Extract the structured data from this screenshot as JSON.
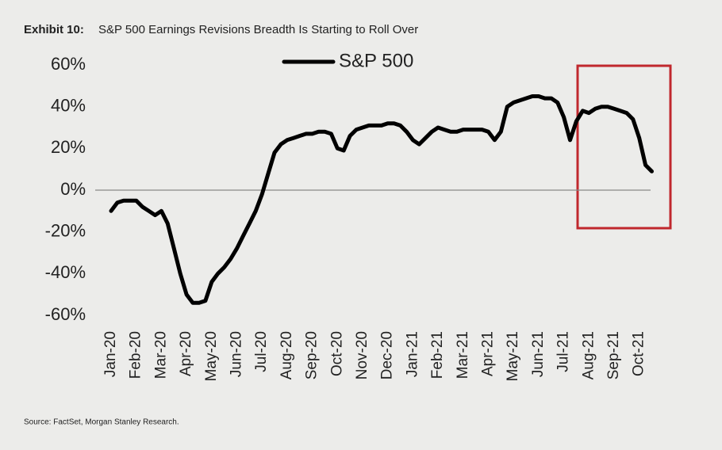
{
  "chart_data": {
    "type": "line",
    "title_label": "Exhibit 10:",
    "title": "S&P 500 Earnings Revisions Breadth Is Starting to Roll Over",
    "source": "Source: FactSet, Morgan Stanley Research.",
    "categories": [
      "Jan-20",
      null,
      null,
      null,
      "Feb-20",
      null,
      null,
      null,
      "Mar-20",
      null,
      null,
      null,
      "Apr-20",
      null,
      null,
      null,
      "May-20",
      null,
      null,
      null,
      "Jun-20",
      null,
      null,
      null,
      "Jul-20",
      null,
      null,
      null,
      "Aug-20",
      null,
      null,
      null,
      "Sep-20",
      null,
      null,
      null,
      "Oct-20",
      null,
      null,
      null,
      "Nov-20",
      null,
      null,
      null,
      "Dec-20",
      null,
      null,
      null,
      "Jan-21",
      null,
      null,
      null,
      "Feb-21",
      null,
      null,
      null,
      "Mar-21",
      null,
      null,
      null,
      "Apr-21",
      null,
      null,
      null,
      "May-21",
      null,
      null,
      null,
      "Jun-21",
      null,
      null,
      null,
      "Jul-21",
      null,
      null,
      null,
      "Aug-21",
      null,
      null,
      null,
      "Sep-21",
      null,
      null,
      null,
      "Oct-21",
      null,
      null
    ],
    "series": [
      {
        "name": "S&P 500",
        "color": "#000000",
        "values": [
          -10,
          -6,
          -5,
          -5,
          -5,
          -8,
          -10,
          -12,
          -10,
          -16,
          -28,
          -40,
          -50,
          -54,
          -54,
          -53,
          -44,
          -40,
          -37,
          -33,
          -28,
          -22,
          -16,
          -10,
          -2,
          8,
          18,
          22,
          24,
          25,
          26,
          27,
          27,
          28,
          28,
          27,
          20,
          19,
          26,
          29,
          30,
          31,
          31,
          31,
          32,
          32,
          31,
          28,
          24,
          22,
          25,
          28,
          30,
          29,
          28,
          28,
          29,
          29,
          29,
          29,
          28,
          24,
          28,
          40,
          42,
          43,
          44,
          45,
          45,
          44,
          44,
          42,
          35,
          24,
          33,
          38,
          37,
          39,
          40,
          40,
          39,
          38,
          37,
          34,
          25,
          12,
          9
        ]
      }
    ],
    "ylim": [
      -60,
      60
    ],
    "yticks": [
      {
        "value": 60,
        "label": "60%"
      },
      {
        "value": 40,
        "label": "40%"
      },
      {
        "value": 20,
        "label": "20%"
      },
      {
        "value": 0,
        "label": "0%"
      },
      {
        "value": -20,
        "label": "-20%"
      },
      {
        "value": -40,
        "label": "-40%"
      },
      {
        "value": -60,
        "label": "-60%"
      }
    ],
    "zero_line": true,
    "legend": "top"
  }
}
